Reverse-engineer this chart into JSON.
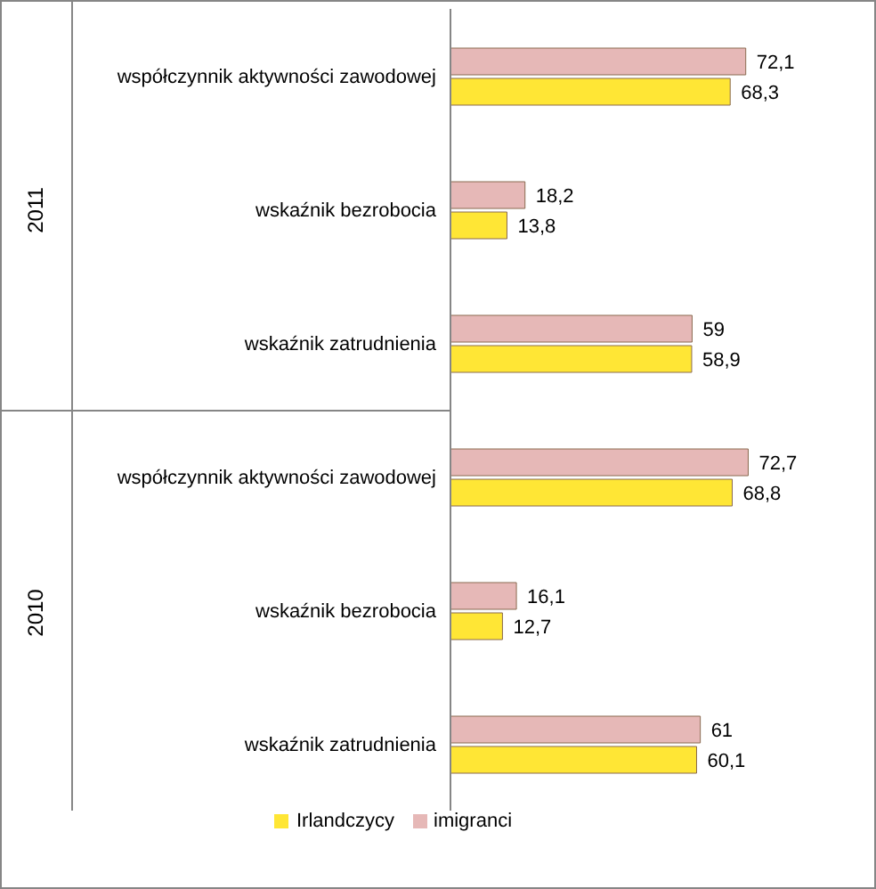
{
  "chart_data": {
    "type": "bar",
    "orientation": "horizontal",
    "categories": [
      "współczynnik aktywności  zawodowej",
      "wskaźnik bezrobocia",
      "wskaźnik zatrudnienia",
      "współczynnik aktywności  zawodowej",
      "wskaźnik bezrobocia",
      "wskaźnik zatrudnienia"
    ],
    "annotations": [
      "2011",
      "2010"
    ],
    "series": [
      {
        "name": "imigranci",
        "color": "#e6b8b7",
        "values": [
          72.1,
          18.2,
          59,
          72.7,
          16.1,
          61
        ],
        "value_labels": [
          "72,1",
          "18,2",
          "59",
          "72,7",
          "16,1",
          "61"
        ]
      },
      {
        "name": "Irlandczycy",
        "color": "#ffe635",
        "values": [
          68.3,
          13.8,
          58.9,
          68.8,
          12.7,
          60.1
        ],
        "value_labels": [
          "68,3",
          "13,8",
          "58,9",
          "68,8",
          "12,7",
          "60,1"
        ]
      }
    ],
    "legend": "bottom"
  }
}
